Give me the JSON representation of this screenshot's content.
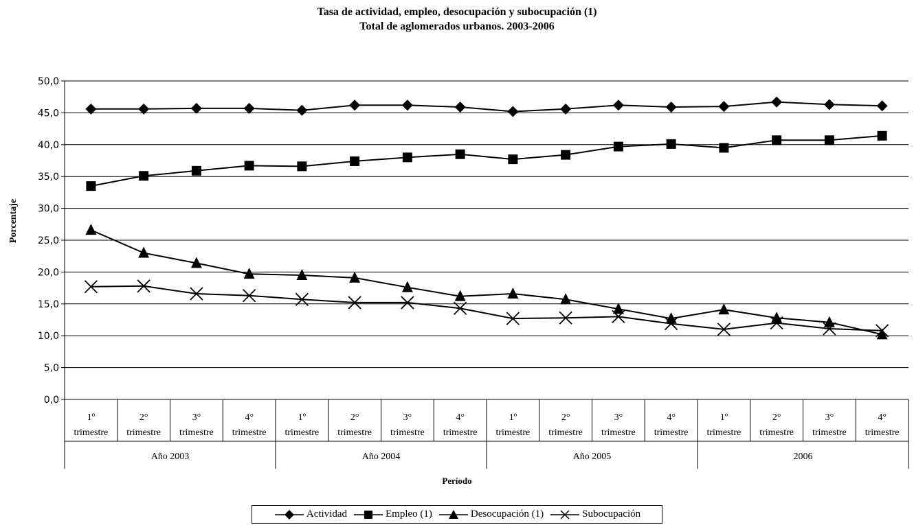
{
  "title_line1": "Tasa de actividad, empleo, desocupación y subocupación (1)",
  "title_line2": "Total de aglomerados urbanos. 2003-2006",
  "chart_data": {
    "type": "line",
    "ylabel": "Porcentaje",
    "xlabel": "Período",
    "ylim": [
      0,
      50
    ],
    "ytick_step": 5,
    "ytick_labels": [
      "0,0",
      "5,0",
      "10,0",
      "15,0",
      "20,0",
      "25,0",
      "30,0",
      "35,0",
      "40,0",
      "45,0",
      "50,0"
    ],
    "grid": true,
    "legend_position": "bottom",
    "categories": [
      {
        "line1": "1º",
        "line2": "trimestre"
      },
      {
        "line1": "2°",
        "line2": "trimestre"
      },
      {
        "line1": "3°",
        "line2": "trimestre"
      },
      {
        "line1": "4°",
        "line2": "trimestre"
      },
      {
        "line1": "1º",
        "line2": "trimestre"
      },
      {
        "line1": "2°",
        "line2": "trimestre"
      },
      {
        "line1": "3°",
        "line2": "trimestre"
      },
      {
        "line1": "4°",
        "line2": "trimestre"
      },
      {
        "line1": "1º",
        "line2": "trimestre"
      },
      {
        "line1": "2°",
        "line2": "trimestre"
      },
      {
        "line1": "3°",
        "line2": "trimestre"
      },
      {
        "line1": "4°",
        "line2": "trimestre"
      },
      {
        "line1": "1º",
        "line2": "trimestre"
      },
      {
        "line1": "2°",
        "line2": "trimestre"
      },
      {
        "line1": "3°",
        "line2": "trimestre"
      },
      {
        "line1": "4°",
        "line2": "trimestre"
      }
    ],
    "groups": [
      {
        "label": "Año 2003",
        "count": 4
      },
      {
        "label": "Año 2004",
        "count": 4
      },
      {
        "label": "Año 2005",
        "count": 4
      },
      {
        "label": "2006",
        "count": 4
      }
    ],
    "series": [
      {
        "name": "Actividad",
        "marker": "diamond",
        "values": [
          45.6,
          45.6,
          45.7,
          45.7,
          45.4,
          46.2,
          46.2,
          45.9,
          45.2,
          45.6,
          46.2,
          45.9,
          46.0,
          46.7,
          46.3,
          46.1
        ]
      },
      {
        "name": "Empleo (1)",
        "marker": "square",
        "values": [
          33.5,
          35.1,
          35.9,
          36.7,
          36.6,
          37.4,
          38.0,
          38.5,
          37.7,
          38.4,
          39.7,
          40.1,
          39.5,
          40.7,
          40.7,
          41.4
        ]
      },
      {
        "name": "Desocupación (1)",
        "marker": "triangle",
        "values": [
          26.6,
          23.0,
          21.4,
          19.7,
          19.5,
          19.1,
          17.6,
          16.2,
          16.6,
          15.7,
          14.2,
          12.7,
          14.1,
          12.8,
          12.1,
          10.2
        ]
      },
      {
        "name": "Subocupación",
        "marker": "x",
        "values": [
          17.7,
          17.8,
          16.6,
          16.3,
          15.7,
          15.2,
          15.2,
          14.3,
          12.7,
          12.8,
          13.0,
          11.9,
          11.0,
          12.0,
          11.1,
          10.8
        ]
      }
    ]
  }
}
